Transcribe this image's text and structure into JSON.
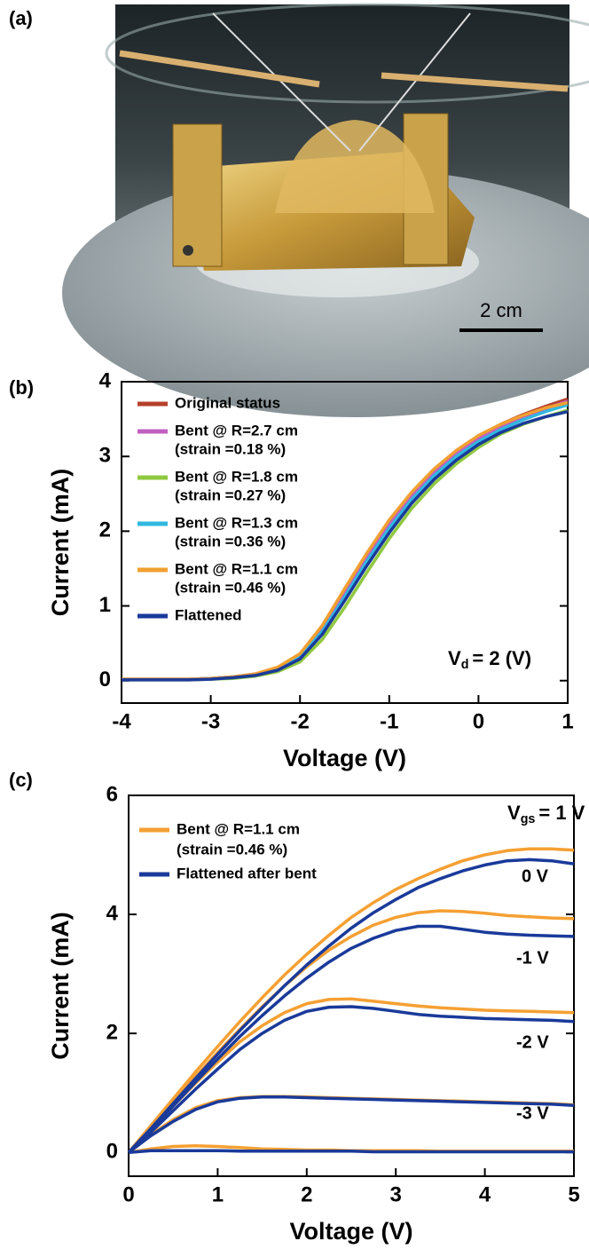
{
  "photo": {
    "label": "(a)",
    "scale_bar": "2 cm"
  },
  "chart_data": [
    {
      "type": "line",
      "label": "(b)",
      "xlabel": "Voltage (V)",
      "ylabel": "Current (mA)",
      "xlim": [
        -4,
        1
      ],
      "ylim": [
        -0.3,
        4
      ],
      "xticks": [
        -4,
        -3,
        -2,
        -1,
        0,
        1
      ],
      "yticks": [
        0,
        1,
        2,
        3,
        4
      ],
      "annotation": {
        "main": "V",
        "sub": "d",
        "rest": "= 2 (V)"
      },
      "x": [
        -4,
        -3.75,
        -3.5,
        -3.25,
        -3,
        -2.75,
        -2.5,
        -2.25,
        -2,
        -1.75,
        -1.5,
        -1.25,
        -1,
        -0.75,
        -0.5,
        -0.25,
        0,
        0.25,
        0.5,
        0.75,
        1
      ],
      "series": [
        {
          "name": [
            "Original status"
          ],
          "color": "#b5402a",
          "values": [
            0.02,
            0.02,
            0.02,
            0.02,
            0.03,
            0.05,
            0.09,
            0.17,
            0.35,
            0.72,
            1.2,
            1.68,
            2.12,
            2.5,
            2.82,
            3.07,
            3.27,
            3.43,
            3.56,
            3.67,
            3.77
          ]
        },
        {
          "name": [
            "Bent @ R=2.7 cm",
            "(strain =0.18 %)"
          ],
          "color": "#c060c0",
          "values": [
            0.02,
            0.02,
            0.02,
            0.02,
            0.03,
            0.05,
            0.09,
            0.17,
            0.34,
            0.7,
            1.17,
            1.65,
            2.09,
            2.47,
            2.79,
            3.04,
            3.24,
            3.4,
            3.53,
            3.64,
            3.74
          ]
        },
        {
          "name": [
            "Bent @ R=1.8 cm",
            "(strain =0.27 %)"
          ],
          "color": "#90c840",
          "values": [
            0.01,
            0.01,
            0.01,
            0.01,
            0.02,
            0.03,
            0.06,
            0.12,
            0.25,
            0.55,
            0.98,
            1.45,
            1.9,
            2.3,
            2.63,
            2.9,
            3.12,
            3.3,
            3.43,
            3.53,
            3.62
          ]
        },
        {
          "name": [
            "Bent @ R=1.3 cm",
            "(strain =0.36 %)"
          ],
          "color": "#30b8e0",
          "values": [
            0.02,
            0.02,
            0.02,
            0.02,
            0.03,
            0.05,
            0.08,
            0.15,
            0.31,
            0.66,
            1.12,
            1.6,
            2.04,
            2.42,
            2.74,
            3.0,
            3.2,
            3.36,
            3.49,
            3.6,
            3.69
          ]
        },
        {
          "name": [
            "Bent @ R=1.1 cm",
            "(strain =0.46 %)"
          ],
          "color": "#f0a030",
          "values": [
            0.02,
            0.02,
            0.02,
            0.02,
            0.03,
            0.05,
            0.09,
            0.18,
            0.36,
            0.74,
            1.23,
            1.71,
            2.15,
            2.52,
            2.83,
            3.08,
            3.28,
            3.43,
            3.55,
            3.65,
            3.72
          ]
        },
        {
          "name": [
            "Flattened"
          ],
          "color": "#1a3a9a",
          "values": [
            0.01,
            0.01,
            0.01,
            0.01,
            0.02,
            0.04,
            0.07,
            0.14,
            0.29,
            0.62,
            1.07,
            1.54,
            1.98,
            2.37,
            2.69,
            2.95,
            3.16,
            3.32,
            3.44,
            3.53,
            3.6
          ]
        }
      ]
    },
    {
      "type": "line",
      "label": "(c)",
      "xlabel": "Voltage (V)",
      "ylabel": "Current (mA)",
      "xlim": [
        0,
        5
      ],
      "ylim": [
        -0.4,
        6
      ],
      "xticks": [
        0,
        1,
        2,
        3,
        4,
        5
      ],
      "yticks": [
        0,
        2,
        4,
        6
      ],
      "curve_labels": [
        {
          "main": "V",
          "sub": "gs",
          "rest": "= 1 V"
        },
        "0 V",
        "-1 V",
        "-2 V",
        "-3 V"
      ],
      "x": [
        0,
        0.25,
        0.5,
        0.75,
        1,
        1.25,
        1.5,
        1.75,
        2,
        2.25,
        2.5,
        2.75,
        3,
        3.25,
        3.5,
        3.75,
        4,
        4.25,
        4.5,
        4.75,
        5
      ],
      "series": [
        {
          "name": [
            "Bent @ R=1.1 cm",
            "(strain =0.46 %)"
          ],
          "color": "#f5a033",
          "values": [
            [
              0,
              0.45,
              0.9,
              1.35,
              1.78,
              2.2,
              2.6,
              2.98,
              3.33,
              3.65,
              3.95,
              4.2,
              4.42,
              4.6,
              4.76,
              4.9,
              5.0,
              5.07,
              5.1,
              5.1,
              5.08
            ],
            [
              0,
              0.42,
              0.85,
              1.27,
              1.68,
              2.07,
              2.45,
              2.8,
              3.12,
              3.4,
              3.63,
              3.82,
              3.95,
              4.03,
              4.06,
              4.05,
              4.02,
              3.98,
              3.96,
              3.94,
              3.93
            ],
            [
              0,
              0.38,
              0.78,
              1.16,
              1.52,
              1.86,
              2.13,
              2.35,
              2.5,
              2.57,
              2.58,
              2.54,
              2.5,
              2.46,
              2.43,
              2.41,
              2.39,
              2.38,
              2.37,
              2.36,
              2.35
            ],
            [
              0,
              0.3,
              0.55,
              0.75,
              0.87,
              0.92,
              0.94,
              0.94,
              0.93,
              0.92,
              0.91,
              0.9,
              0.89,
              0.88,
              0.87,
              0.86,
              0.85,
              0.84,
              0.83,
              0.82,
              0.8
            ],
            [
              0,
              0.06,
              0.1,
              0.11,
              0.1,
              0.08,
              0.06,
              0.05,
              0.04,
              0.04,
              0.03,
              0.03,
              0.03,
              0.03,
              0.02,
              0.02,
              0.02,
              0.02,
              0.02,
              0.02,
              0.02
            ]
          ]
        },
        {
          "name": [
            "Flattened after bent"
          ],
          "color": "#1a3a9a",
          "values": [
            [
              0,
              0.4,
              0.82,
              1.24,
              1.65,
              2.05,
              2.43,
              2.8,
              3.15,
              3.47,
              3.77,
              4.03,
              4.25,
              4.45,
              4.6,
              4.73,
              4.83,
              4.9,
              4.92,
              4.9,
              4.85
            ],
            [
              0,
              0.38,
              0.78,
              1.18,
              1.57,
              1.95,
              2.3,
              2.63,
              2.93,
              3.2,
              3.43,
              3.6,
              3.73,
              3.8,
              3.8,
              3.75,
              3.7,
              3.67,
              3.65,
              3.64,
              3.63
            ],
            [
              0,
              0.34,
              0.7,
              1.06,
              1.4,
              1.73,
              2.0,
              2.22,
              2.37,
              2.44,
              2.45,
              2.42,
              2.37,
              2.32,
              2.29,
              2.27,
              2.25,
              2.24,
              2.23,
              2.22,
              2.2
            ],
            [
              0,
              0.28,
              0.52,
              0.72,
              0.85,
              0.91,
              0.93,
              0.93,
              0.92,
              0.91,
              0.9,
              0.89,
              0.88,
              0.87,
              0.86,
              0.85,
              0.84,
              0.83,
              0.82,
              0.81,
              0.79
            ],
            [
              0,
              0.03,
              0.03,
              0.03,
              0.03,
              0.02,
              0.02,
              0.02,
              0.02,
              0.02,
              0.02,
              0.01,
              0.01,
              0.01,
              0.01,
              0.01,
              0.01,
              0.01,
              0.01,
              0.01,
              0.01
            ]
          ]
        }
      ]
    }
  ]
}
